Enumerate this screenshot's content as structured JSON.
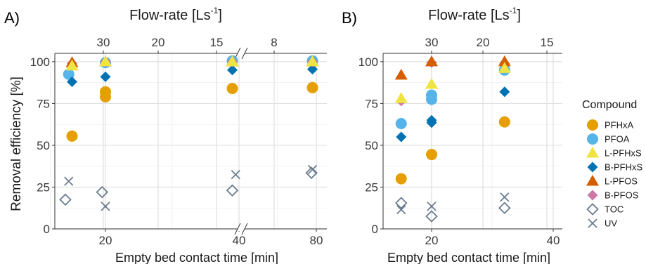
{
  "figure": {
    "legend_title": "Compound",
    "colors": {
      "PFHxA": "#E69F00",
      "PFOA": "#56B4E9",
      "L-PFHxS": "#F0E442",
      "B-PFHxS": "#0072B2",
      "L-PFOS": "#D55E00",
      "B-PFOS": "#CC79A7",
      "TOC": "#6A7B8F",
      "UV": "#6A7B8F"
    },
    "legend": [
      {
        "name": "PFHxA",
        "shape": "circle"
      },
      {
        "name": "PFOA",
        "shape": "circle"
      },
      {
        "name": "L-PFHxS",
        "shape": "triangle"
      },
      {
        "name": "B-PFHxS",
        "shape": "diamond"
      },
      {
        "name": "L-PFOS",
        "shape": "triangle"
      },
      {
        "name": "B-PFOS",
        "shape": "diamond"
      },
      {
        "name": "TOC",
        "shape": "open-diamond"
      },
      {
        "name": "UV",
        "shape": "cross"
      }
    ]
  },
  "chart_data": [
    {
      "panel_label": "A)",
      "type": "scatter",
      "xlabel": "Empty bed contact time [min]",
      "ylabel": "Removal efficiency [%]",
      "top_axis_label_main": "Flow-rate [Ls",
      "top_axis_label_sup": "-1",
      "top_axis_label_end": "]",
      "ylim": [
        0,
        105
      ],
      "yticks": [
        "0",
        "25",
        "50",
        "75",
        "100"
      ],
      "xticks": [
        "20",
        "40",
        "80"
      ],
      "top_ticks": [
        "30",
        "20",
        "15",
        "8"
      ],
      "axis_break": true,
      "grid": true,
      "legend_position": "right",
      "series": [
        {
          "name": "PFHxA",
          "points": [
            {
              "x": 15.0,
              "y": 55.5
            },
            {
              "x": 20.0,
              "y": 82.0
            },
            {
              "x": 20.0,
              "y": 79.0
            },
            {
              "x": 39.0,
              "y": 84.0
            },
            {
              "x": 78.0,
              "y": 84.5
            }
          ]
        },
        {
          "name": "PFOA",
          "points": [
            {
              "x": 14.5,
              "y": 92.5
            },
            {
              "x": 20.0,
              "y": 99.5
            },
            {
              "x": 39.0,
              "y": 100.5
            },
            {
              "x": 78.0,
              "y": 100.5
            }
          ]
        },
        {
          "name": "L-PFHxS",
          "points": [
            {
              "x": 15.0,
              "y": 97.5
            },
            {
              "x": 20.0,
              "y": 100.0
            },
            {
              "x": 39.0,
              "y": 100.0
            },
            {
              "x": 78.0,
              "y": 100.0
            }
          ]
        },
        {
          "name": "B-PFHxS",
          "points": [
            {
              "x": 15.0,
              "y": 88.0
            },
            {
              "x": 20.0,
              "y": 91.0
            },
            {
              "x": 39.0,
              "y": 95.0
            },
            {
              "x": 78.0,
              "y": 95.5
            }
          ]
        },
        {
          "name": "L-PFOS",
          "points": [
            {
              "x": 15.0,
              "y": 99.5
            },
            {
              "x": 20.0,
              "y": 100.0
            },
            {
              "x": 39.0,
              "y": 100.0
            },
            {
              "x": 78.0,
              "y": 100.0
            }
          ]
        },
        {
          "name": "B-PFOS",
          "points": [
            {
              "x": 15.0,
              "y": 99.0
            },
            {
              "x": 20.0,
              "y": 100.0
            },
            {
              "x": 39.0,
              "y": 100.0
            },
            {
              "x": 78.0,
              "y": 100.0
            }
          ]
        },
        {
          "name": "TOC",
          "points": [
            {
              "x": 14.0,
              "y": 17.5
            },
            {
              "x": 19.5,
              "y": 22.0
            },
            {
              "x": 39.0,
              "y": 23.0
            },
            {
              "x": 77.5,
              "y": 33.5
            }
          ]
        },
        {
          "name": "UV",
          "points": [
            {
              "x": 14.5,
              "y": 28.5
            },
            {
              "x": 20.0,
              "y": 13.5
            },
            {
              "x": 39.5,
              "y": 32.5
            },
            {
              "x": 78.0,
              "y": 35.5
            }
          ]
        }
      ]
    },
    {
      "panel_label": "B)",
      "type": "scatter",
      "xlabel": "Empty bed contact time [min]",
      "ylabel": "",
      "top_axis_label_main": "Flow-rate [Ls",
      "top_axis_label_sup": "-1",
      "top_axis_label_end": "]",
      "ylim": [
        0,
        105
      ],
      "xlim": [
        12,
        42
      ],
      "yticks": [
        "0",
        "25",
        "50",
        "75",
        "100"
      ],
      "xticks": [
        "20",
        "40"
      ],
      "top_ticks": [
        "30",
        "20",
        "15"
      ],
      "axis_break": false,
      "grid": true,
      "legend_position": "right",
      "series": [
        {
          "name": "PFHxA",
          "points": [
            {
              "x": 15.0,
              "y": 30.0
            },
            {
              "x": 20.0,
              "y": 44.5
            },
            {
              "x": 32.0,
              "y": 64.0
            }
          ]
        },
        {
          "name": "PFOA",
          "points": [
            {
              "x": 15.0,
              "y": 63.0
            },
            {
              "x": 20.0,
              "y": 80.0
            },
            {
              "x": 20.0,
              "y": 77.5
            },
            {
              "x": 32.0,
              "y": 95.0
            }
          ]
        },
        {
          "name": "L-PFHxS",
          "points": [
            {
              "x": 15.0,
              "y": 78.0
            },
            {
              "x": 20.0,
              "y": 86.5
            },
            {
              "x": 32.0,
              "y": 96.0
            }
          ]
        },
        {
          "name": "B-PFHxS",
          "points": [
            {
              "x": 15.0,
              "y": 55.0
            },
            {
              "x": 20.0,
              "y": 65.0
            },
            {
              "x": 20.0,
              "y": 63.5
            },
            {
              "x": 32.0,
              "y": 82.0
            }
          ]
        },
        {
          "name": "L-PFOS",
          "points": [
            {
              "x": 15.0,
              "y": 92.0
            },
            {
              "x": 20.0,
              "y": 100.0
            },
            {
              "x": 32.0,
              "y": 100.0
            }
          ]
        },
        {
          "name": "B-PFOS",
          "points": [
            {
              "x": 15.0,
              "y": 76.5
            },
            {
              "x": 20.0,
              "y": 99.5
            },
            {
              "x": 32.0,
              "y": 99.0
            }
          ]
        },
        {
          "name": "TOC",
          "points": [
            {
              "x": 15.0,
              "y": 15.5
            },
            {
              "x": 20.0,
              "y": 7.5
            },
            {
              "x": 32.0,
              "y": 12.5
            }
          ]
        },
        {
          "name": "UV",
          "points": [
            {
              "x": 15.0,
              "y": 11.5
            },
            {
              "x": 20.0,
              "y": 13.5
            },
            {
              "x": 32.0,
              "y": 19.0
            }
          ]
        }
      ]
    }
  ]
}
